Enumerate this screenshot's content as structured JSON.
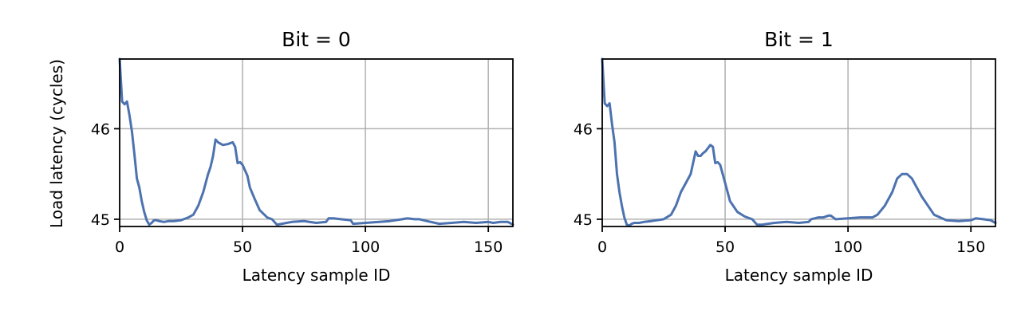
{
  "figure": {
    "y_axis_label": "Load latency (cycles)",
    "x_axis_label": "Latency sample ID"
  },
  "chart_data": [
    {
      "type": "line",
      "title": "Bit = 0",
      "xlabel": "Latency sample ID",
      "ylabel": "Load latency (cycles)",
      "xlim": [
        0,
        160
      ],
      "ylim": [
        44.92,
        46.77
      ],
      "xticks": [
        0,
        50,
        100,
        150
      ],
      "yticks": [
        45,
        46
      ],
      "grid": true,
      "line_color": "#4c72b0",
      "series": [
        {
          "x": [
            0,
            1,
            2,
            3,
            4,
            5,
            6,
            7,
            8,
            9,
            10,
            11,
            12,
            13,
            14,
            15,
            16,
            18,
            20,
            22,
            25,
            28,
            30,
            32,
            34,
            36,
            37,
            38,
            39,
            40,
            42,
            44,
            46,
            47,
            48,
            49,
            50,
            52,
            53,
            55,
            57,
            60,
            62,
            64,
            66,
            70,
            75,
            80,
            84,
            85,
            87,
            90,
            94,
            95,
            100,
            110,
            115,
            117,
            120,
            122,
            125,
            130,
            135,
            140,
            145,
            150,
            152,
            155,
            158,
            160
          ],
          "y": [
            46.77,
            46.3,
            46.27,
            46.3,
            46.15,
            45.97,
            45.72,
            45.45,
            45.35,
            45.2,
            45.08,
            44.99,
            44.94,
            44.96,
            44.99,
            44.99,
            44.98,
            44.97,
            44.98,
            44.98,
            44.99,
            45.02,
            45.05,
            45.15,
            45.3,
            45.5,
            45.58,
            45.7,
            45.88,
            45.85,
            45.82,
            45.83,
            45.85,
            45.8,
            45.62,
            45.63,
            45.6,
            45.48,
            45.35,
            45.22,
            45.1,
            45.02,
            45.0,
            44.94,
            44.95,
            44.97,
            44.98,
            44.96,
            44.97,
            45.01,
            45.01,
            45.0,
            44.99,
            44.95,
            44.96,
            44.98,
            45.0,
            45.01,
            45.0,
            45.0,
            44.98,
            44.95,
            44.96,
            44.97,
            44.96,
            44.97,
            44.96,
            44.97,
            44.97,
            44.94
          ]
        }
      ]
    },
    {
      "type": "line",
      "title": "Bit = 1",
      "xlabel": "Latency sample ID",
      "ylabel": "",
      "xlim": [
        0,
        160
      ],
      "ylim": [
        44.92,
        46.77
      ],
      "xticks": [
        0,
        50,
        100,
        150
      ],
      "yticks": [
        45,
        46
      ],
      "grid": true,
      "line_color": "#4c72b0",
      "series": [
        {
          "x": [
            0,
            1,
            2,
            3,
            4,
            5,
            6,
            7,
            8,
            9,
            10,
            11,
            12,
            13,
            14,
            15,
            17,
            20,
            25,
            28,
            30,
            32,
            34,
            36,
            38,
            39,
            40,
            41,
            42,
            44,
            45,
            46,
            47,
            48,
            49,
            50,
            52,
            55,
            58,
            61,
            63,
            65,
            70,
            75,
            80,
            84,
            85,
            88,
            90,
            92,
            93,
            95,
            100,
            105,
            110,
            112,
            115,
            118,
            120,
            122,
            124,
            126,
            128,
            130,
            135,
            140,
            145,
            150,
            152,
            155,
            158,
            160
          ],
          "y": [
            46.77,
            46.28,
            46.25,
            46.28,
            46.05,
            45.85,
            45.5,
            45.3,
            45.15,
            45.02,
            44.94,
            44.93,
            44.95,
            44.96,
            44.96,
            44.96,
            44.97,
            44.98,
            45.0,
            45.05,
            45.15,
            45.3,
            45.4,
            45.5,
            45.75,
            45.7,
            45.7,
            45.73,
            45.75,
            45.82,
            45.8,
            45.62,
            45.63,
            45.6,
            45.5,
            45.4,
            45.2,
            45.08,
            45.03,
            45.0,
            44.94,
            44.94,
            44.96,
            44.97,
            44.96,
            44.97,
            45.0,
            45.02,
            45.02,
            45.04,
            45.04,
            45.0,
            45.01,
            45.02,
            45.02,
            45.05,
            45.15,
            45.3,
            45.45,
            45.5,
            45.5,
            45.45,
            45.35,
            45.25,
            45.05,
            44.99,
            44.98,
            44.99,
            45.01,
            45.0,
            44.99,
            44.96
          ]
        }
      ]
    }
  ]
}
